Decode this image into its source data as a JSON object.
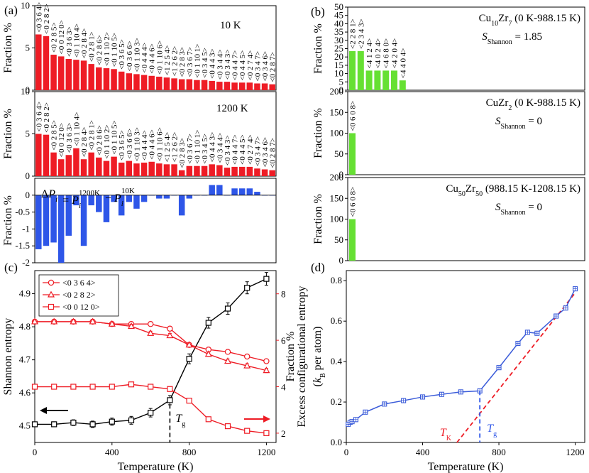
{
  "panel_letters": [
    "(a)",
    "(b)",
    "(c)",
    "(d)"
  ],
  "chart_data": [
    {
      "panel": "(a)",
      "type": "bar",
      "ylabel": "Fraction %",
      "categories": [
        "<0 3 6 4>",
        "<0 2 8 2>",
        "<0 2 8 5>",
        "<0 0 12 0>",
        "<0 3 6 3>",
        "<0 1 10 4>",
        "<0 2 8 4>",
        "<0 2 8 1>",
        "<0 2 8 6>",
        "<0 1 10 2>",
        "<0 1 10 5>",
        "<0 3 6 5>",
        "<0 3 6 6>",
        "<0 1 10 3>",
        "<0 4 4 4>",
        "<0 4 4 6>",
        "<0 1 10 6>",
        "<1 2 5 4>",
        "<1 2 6 2>",
        "<0 2 8 3>",
        "<0 3 6 7>",
        "<0 1 10 1>",
        "<0 3 4 5>",
        "<0 4 4 3>",
        "<0 3 4 4>",
        "<0 3 4 3>",
        "<0 4 4 7>",
        "<0 4 4 5>",
        "<0 2 7 4>",
        "<0 3 4 7>",
        "<0 3 4 6>",
        "<0 2 8 7>"
      ],
      "series": [
        {
          "name": "10 K",
          "ylim": [
            0,
            10
          ],
          "yticks": [
            0,
            5,
            10
          ],
          "values": [
            6.6,
            6.4,
            4.2,
            4.0,
            3.7,
            3.6,
            3.5,
            3.1,
            2.7,
            2.6,
            2.5,
            2.2,
            2.0,
            1.9,
            1.8,
            1.7,
            1.6,
            1.5,
            1.4,
            1.3,
            1.3,
            1.2,
            1.2,
            1.1,
            1.0,
            1.0,
            0.9,
            0.9,
            0.9,
            0.8,
            0.8,
            0.7
          ]
        },
        {
          "name": "1200 K",
          "ylim": [
            0,
            10
          ],
          "yticks": [
            0,
            5,
            10
          ],
          "values": [
            5.0,
            4.9,
            2.8,
            2.0,
            2.5,
            3.3,
            2.0,
            2.8,
            2.2,
            1.8,
            2.3,
            1.6,
            1.8,
            1.5,
            1.6,
            1.7,
            1.5,
            1.4,
            1.4,
            0.7,
            1.2,
            1.2,
            1.2,
            1.4,
            1.3,
            1.0,
            1.1,
            1.1,
            1.1,
            0.9,
            0.8,
            0.7
          ]
        },
        {
          "name": "ΔP",
          "ylim": [
            -2,
            0.5
          ],
          "yticks": [
            -2,
            -1.5,
            -1,
            -0.5,
            0
          ],
          "values": [
            -1.6,
            -1.5,
            -1.4,
            -2.0,
            -1.2,
            -0.3,
            -1.5,
            -0.3,
            -0.5,
            -0.8,
            -0.2,
            -0.6,
            -0.2,
            -0.4,
            -0.2,
            0.0,
            -0.1,
            -0.1,
            0.0,
            -0.6,
            -0.1,
            0.0,
            0.0,
            0.3,
            0.3,
            0.0,
            0.2,
            0.2,
            0.2,
            0.1,
            0.0,
            0.0
          ]
        }
      ],
      "labels": {
        "top": "10 K",
        "mid": "1200 K",
        "bottom_formula": "ΔPi = Pi1200K − Pi10K"
      }
    },
    {
      "panel": "(b)",
      "type": "bar",
      "ylabel": "Fraction %",
      "subplots": [
        {
          "compound": "Cu10Zr7 (0 K-988.15 K)",
          "shannon": "SShannon = 1.85",
          "ylim": [
            0,
            50
          ],
          "yticks": [
            0,
            5,
            10,
            15,
            20,
            25,
            30,
            35,
            40,
            45,
            50
          ],
          "categories": [
            "<2 2 8 1>",
            "<2 3 4 3>",
            "<4 1 2 4>",
            "<4 0 2 4>",
            "<4 6 8 0>",
            "<4 2 0 4>",
            "<4 4 0 4>"
          ],
          "values": [
            23.5,
            23.5,
            11.8,
            11.8,
            11.8,
            11.8,
            5.9
          ]
        },
        {
          "compound": "CuZr2 (0 K-988.15 K)",
          "shannon": "SShannon = 0",
          "ylim": [
            0,
            200
          ],
          "yticks": [
            0,
            50,
            100,
            150,
            200
          ],
          "categories": [
            "<0 6 0 8>"
          ],
          "values": [
            100
          ]
        },
        {
          "compound": "Cu50Zr50 (988.15 K-1208.15 K)",
          "shannon": "SShannon = 0",
          "ylim": [
            0,
            200
          ],
          "yticks": [
            0,
            50,
            100,
            150,
            200
          ],
          "categories": [
            "<0 6 0 8>"
          ],
          "values": [
            100
          ]
        }
      ]
    },
    {
      "panel": "(c)",
      "type": "line",
      "xlabel": "Temperature (K)",
      "ylabel": "Shannon entropy",
      "ylabel_right": "Fraction %",
      "xlim": [
        0,
        1250
      ],
      "xticks": [
        0,
        400,
        800,
        1200
      ],
      "ylim": [
        4.45,
        4.97
      ],
      "yticks": [
        4.5,
        4.6,
        4.7,
        4.8,
        4.9
      ],
      "ylim_right": [
        1.6,
        9.0
      ],
      "yticks_right": [
        2,
        4,
        6,
        8
      ],
      "x": [
        0,
        100,
        200,
        300,
        400,
        500,
        600,
        700,
        800,
        900,
        1000,
        1100,
        1200
      ],
      "series": [
        {
          "name": "Shannon entropy",
          "axis": "left",
          "color": "#000000",
          "values": [
            4.505,
            4.505,
            4.51,
            4.505,
            4.513,
            4.517,
            4.54,
            4.578,
            4.703,
            4.812,
            4.855,
            4.918,
            4.945
          ]
        },
        {
          "name": "<0 3 6 4>",
          "axis": "right",
          "color": "#ee1c25",
          "marker": "circle",
          "values": [
            6.8,
            6.8,
            6.8,
            6.8,
            6.7,
            6.7,
            6.7,
            6.5,
            5.8,
            5.6,
            5.5,
            5.3,
            5.1
          ]
        },
        {
          "name": "<0 2 8 2>",
          "axis": "right",
          "color": "#ee1c25",
          "marker": "triangle",
          "values": [
            6.8,
            6.8,
            6.8,
            6.8,
            6.7,
            6.6,
            6.3,
            6.2,
            5.8,
            5.4,
            5.1,
            4.9,
            4.7
          ]
        },
        {
          "name": "<0 0 12 0>",
          "axis": "right",
          "color": "#ee1c25",
          "marker": "square",
          "values": [
            4.0,
            4.0,
            4.0,
            4.0,
            4.0,
            4.1,
            4.0,
            3.9,
            3.4,
            2.6,
            2.3,
            2.1,
            2.0
          ]
        }
      ],
      "legend": [
        "<0 3 6 4>",
        "<0 2 8 2>",
        "<0 0 12 0>"
      ],
      "annotation": {
        "label": "T",
        "subscript": "g",
        "x": 700
      }
    },
    {
      "panel": "(d)",
      "type": "line",
      "xlabel": "Temperature (K)",
      "ylabel": "Excess configurational entropy",
      "ylabel2": "(kB per atom)",
      "xlim": [
        0,
        1250
      ],
      "xticks": [
        0,
        400,
        800,
        1200
      ],
      "ylim": [
        0,
        0.85
      ],
      "yticks": [
        0.0,
        0.2,
        0.4,
        0.6,
        0.8
      ],
      "x": [
        10,
        20,
        30,
        50,
        100,
        200,
        300,
        400,
        500,
        600,
        700,
        800,
        900,
        950,
        1000,
        1100,
        1150,
        1200
      ],
      "series": [
        {
          "name": "Excess entropy",
          "color": "#3a5bd9",
          "values": [
            0.09,
            0.1,
            0.103,
            0.113,
            0.15,
            0.19,
            0.207,
            0.225,
            0.238,
            0.25,
            0.255,
            0.37,
            0.49,
            0.545,
            0.54,
            0.625,
            0.665,
            0.76
          ]
        }
      ],
      "fit_line": {
        "color": "#ee1c25",
        "from": [
          580,
          0.0
        ],
        "to": [
          1200,
          0.74
        ]
      },
      "annotations": [
        {
          "label": "T",
          "subscript": "K",
          "x": 580,
          "color": "#ee1c25"
        },
        {
          "label": "T",
          "subscript": "g",
          "x": 700,
          "color": "#3a5bd9"
        }
      ]
    }
  ]
}
